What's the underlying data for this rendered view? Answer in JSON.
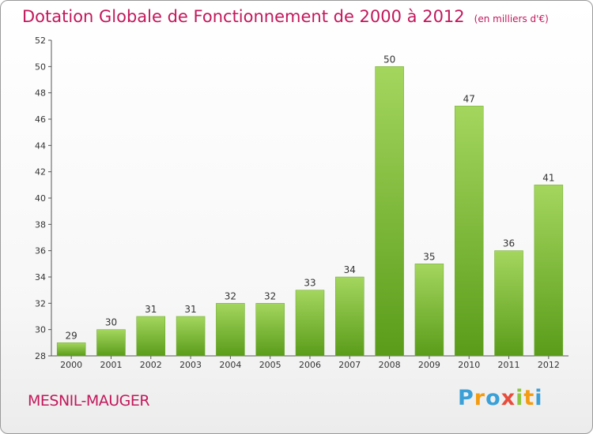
{
  "chart_data": {
    "type": "bar",
    "title": "Dotation Globale de Fonctionnement de 2000 à 2012",
    "unit_label": "(en milliers d'€)",
    "categories": [
      "2000",
      "2001",
      "2002",
      "2003",
      "2004",
      "2005",
      "2006",
      "2007",
      "2008",
      "2009",
      "2010",
      "2011",
      "2012"
    ],
    "values": [
      29,
      30,
      31,
      31,
      32,
      32,
      33,
      34,
      50,
      35,
      47,
      36,
      41
    ],
    "ylim": [
      28,
      52
    ],
    "yticks": [
      28,
      30,
      32,
      34,
      36,
      38,
      40,
      42,
      44,
      46,
      48,
      50,
      52
    ],
    "xlabel": "",
    "ylabel": "",
    "grid": false,
    "bar_color_top": "#a4d65e",
    "bar_color_bottom": "#5a9c1a",
    "data_labels": true
  },
  "commune_name": "MESNIL-MAUGER",
  "logo": {
    "letters": [
      "P",
      "r",
      "o",
      "x",
      "i",
      "t",
      "i"
    ],
    "colors": [
      "#3aa0d8",
      "#f39c12",
      "#3aa0d8",
      "#e74c3c",
      "#8dc63f",
      "#f39c12",
      "#3aa0d8"
    ]
  }
}
